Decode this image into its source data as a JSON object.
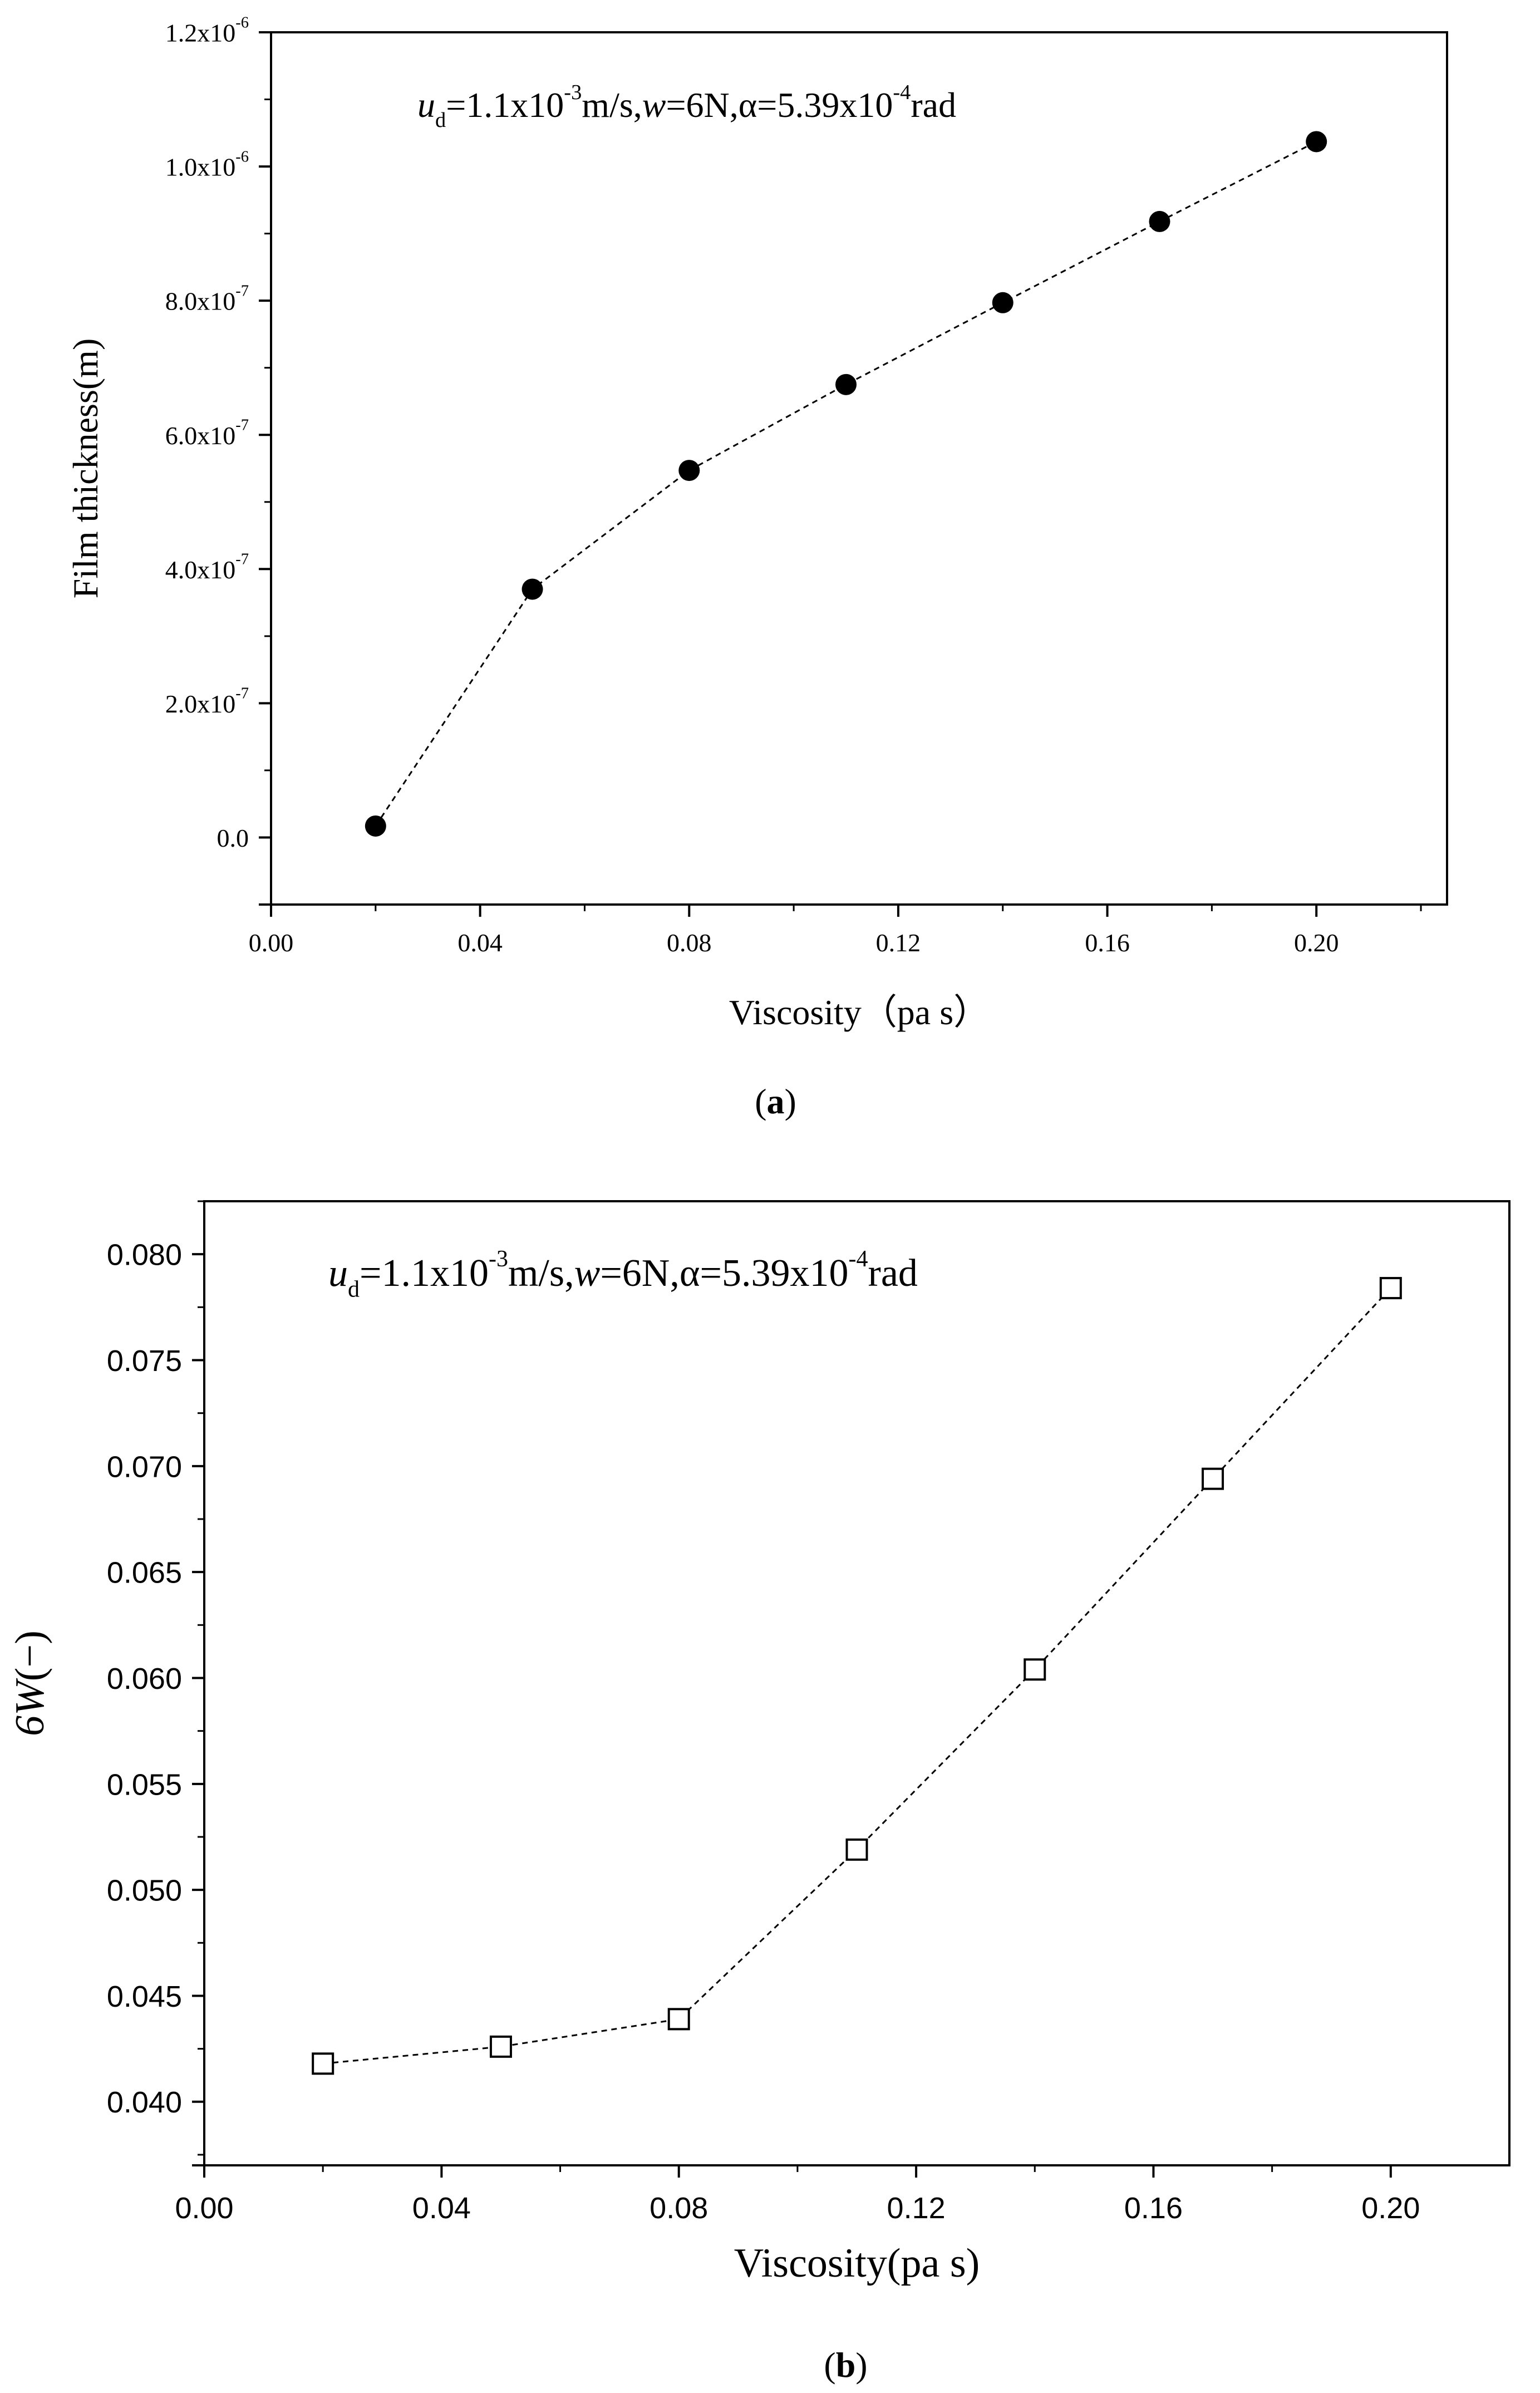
{
  "chart_data": [
    {
      "type": "scatter",
      "panel_label": "a",
      "annotation": {
        "u_symbol": "u",
        "u_sub": "d",
        "u_text": "=1.1x10",
        "u_exp": "-3",
        "u_unit": "m/s,",
        "w_symbol": "w",
        "w_text": "=6N,",
        "alpha_text": "α=5.39x10",
        "alpha_exp": "-4",
        "alpha_unit": "rad"
      },
      "xlabel": "Viscosity（pa s）",
      "ylabel": "Film thickness(m)",
      "xlim": [
        0.0,
        0.225
      ],
      "ylim": [
        -1e-07,
        1.2e-06
      ],
      "xticks": [
        0.0,
        0.04,
        0.08,
        0.12,
        0.16,
        0.2
      ],
      "xtick_labels": [
        "0.00",
        "0.04",
        "0.08",
        "0.12",
        "0.16",
        "0.20"
      ],
      "yticks": [
        0.0,
        2e-07,
        4e-07,
        6e-07,
        8e-07,
        1e-06,
        1.2e-06
      ],
      "ytick_labels": [
        {
          "mantissa": "0.0",
          "exp": ""
        },
        {
          "mantissa": "2.0x10",
          "exp": "-7"
        },
        {
          "mantissa": "4.0x10",
          "exp": "-7"
        },
        {
          "mantissa": "6.0x10",
          "exp": "-7"
        },
        {
          "mantissa": "8.0x10",
          "exp": "-7"
        },
        {
          "mantissa": "1.0x10",
          "exp": "-6"
        },
        {
          "mantissa": "1.2x10",
          "exp": "-6"
        }
      ],
      "marker": "filled-circle",
      "line_style": "dashed",
      "grid": false,
      "series": [
        {
          "x": [
            0.02,
            0.05,
            0.08,
            0.11,
            0.14,
            0.17,
            0.2
          ],
          "y": [
            1.7e-08,
            3.7e-07,
            5.47e-07,
            6.75e-07,
            7.97e-07,
            9.18e-07,
            1.037e-06
          ]
        }
      ]
    },
    {
      "type": "scatter",
      "panel_label": "b",
      "annotation": {
        "u_symbol": "u",
        "u_sub": "d",
        "u_text": "=1.1x10",
        "u_exp": "-3",
        "u_unit": "m/s,",
        "w_symbol": "w",
        "w_text": "=6N,",
        "alpha_text": "α=5.39x10",
        "alpha_exp": "-4",
        "alpha_unit": "rad"
      },
      "xlabel": "Viscosity(pa s)",
      "ylabel": "6W(−)",
      "ylabel_parts": {
        "prefix": "6",
        "italic": "W",
        "suffix": "(−)"
      },
      "xlim": [
        0.0,
        0.22
      ],
      "ylim": [
        0.037,
        0.0825
      ],
      "xticks": [
        0.0,
        0.04,
        0.08,
        0.12,
        0.16,
        0.2
      ],
      "xtick_labels": [
        "0.00",
        "0.04",
        "0.08",
        "0.12",
        "0.16",
        "0.20"
      ],
      "yticks": [
        0.04,
        0.045,
        0.05,
        0.055,
        0.06,
        0.065,
        0.07,
        0.075,
        0.08
      ],
      "ytick_labels": [
        "0.040",
        "0.045",
        "0.050",
        "0.055",
        "0.060",
        "0.065",
        "0.070",
        "0.075",
        "0.080"
      ],
      "marker": "open-square",
      "line_style": "dashed",
      "grid": false,
      "series": [
        {
          "x": [
            0.02,
            0.05,
            0.08,
            0.11,
            0.14,
            0.17,
            0.2
          ],
          "y": [
            0.0418,
            0.0426,
            0.0439,
            0.0519,
            0.0604,
            0.0694,
            0.0784
          ]
        }
      ]
    }
  ]
}
